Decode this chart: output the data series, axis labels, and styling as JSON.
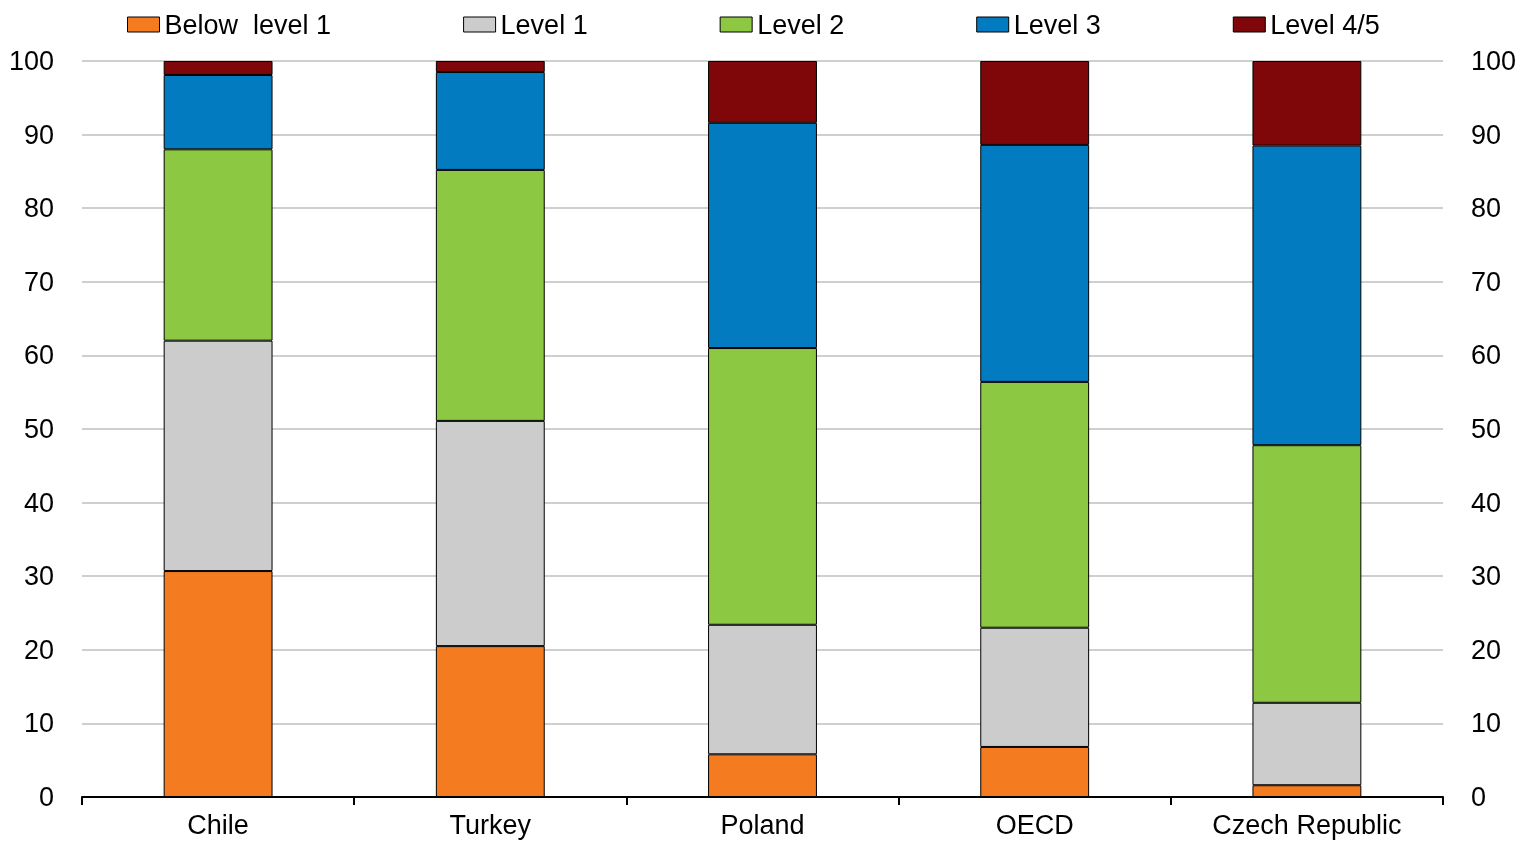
{
  "chart_data": {
    "type": "bar",
    "stacked": true,
    "categories": [
      "Chile",
      "Turkey",
      "Poland",
      "OECD",
      "Czech Republic"
    ],
    "series": [
      {
        "name": "Below  level 1",
        "color": "#f47b20",
        "values": [
          30.7,
          20.5,
          5.8,
          6.8,
          1.6
        ]
      },
      {
        "name": "Level 1",
        "color": "#cccccc",
        "values": [
          31.3,
          30.6,
          17.6,
          16.2,
          11.2
        ]
      },
      {
        "name": "Level 2",
        "color": "#8cc841",
        "values": [
          26.0,
          34.1,
          37.6,
          33.4,
          35.0
        ]
      },
      {
        "name": "Level 3",
        "color": "#037bc1",
        "values": [
          10.1,
          13.3,
          30.6,
          32.2,
          40.7
        ]
      },
      {
        "name": "Level 4/5",
        "color": "#7f0709",
        "values": [
          1.9,
          1.5,
          8.4,
          11.4,
          11.5
        ]
      }
    ],
    "ylim": [
      0,
      100
    ],
    "yticks": [
      0,
      10,
      20,
      30,
      40,
      50,
      60,
      70,
      80,
      90,
      100
    ],
    "y2lim": [
      0,
      100
    ],
    "y2ticks": [
      0,
      10,
      20,
      30,
      40,
      50,
      60,
      70,
      80,
      90,
      100
    ],
    "grid": "y",
    "legend": "top"
  }
}
